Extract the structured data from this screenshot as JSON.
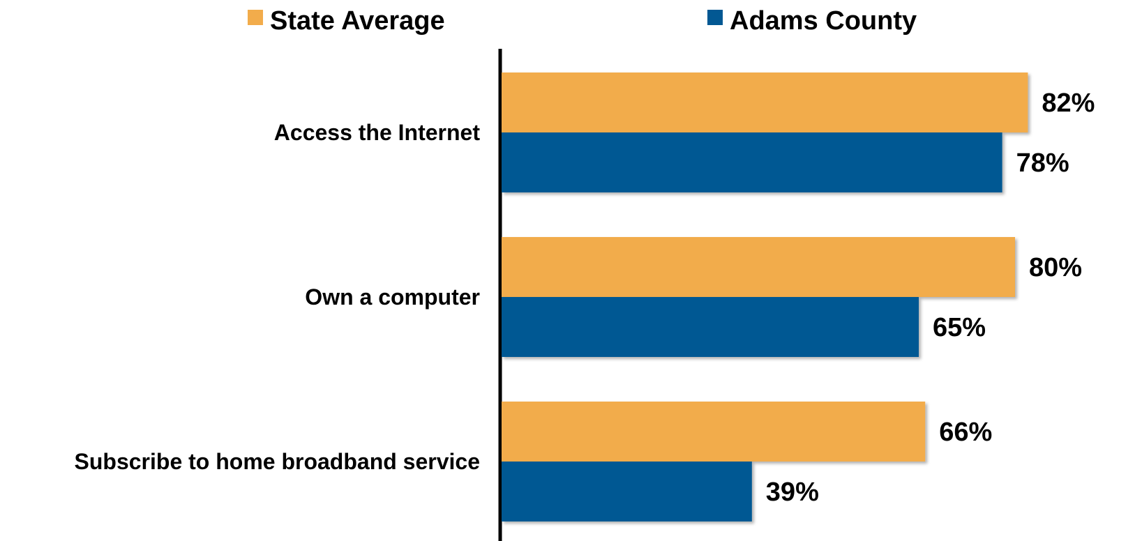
{
  "chart_data": {
    "type": "bar",
    "orientation": "horizontal",
    "categories": [
      "Access the Internet",
      "Own a computer",
      "Subscribe to home broadband service"
    ],
    "series": [
      {
        "name": "State Average",
        "color": "#F2AC4B",
        "values": [
          82,
          80,
          66
        ],
        "labels": [
          "82%",
          "80%",
          "66%"
        ]
      },
      {
        "name": "Adams County",
        "color": "#025893",
        "values": [
          78,
          65,
          39
        ],
        "labels": [
          "78%",
          "65%",
          "39%"
        ]
      }
    ],
    "title": "",
    "xlabel": "",
    "ylabel": "",
    "xlim": [
      0,
      100
    ],
    "unit": "%",
    "grid": false,
    "legend": "top"
  }
}
